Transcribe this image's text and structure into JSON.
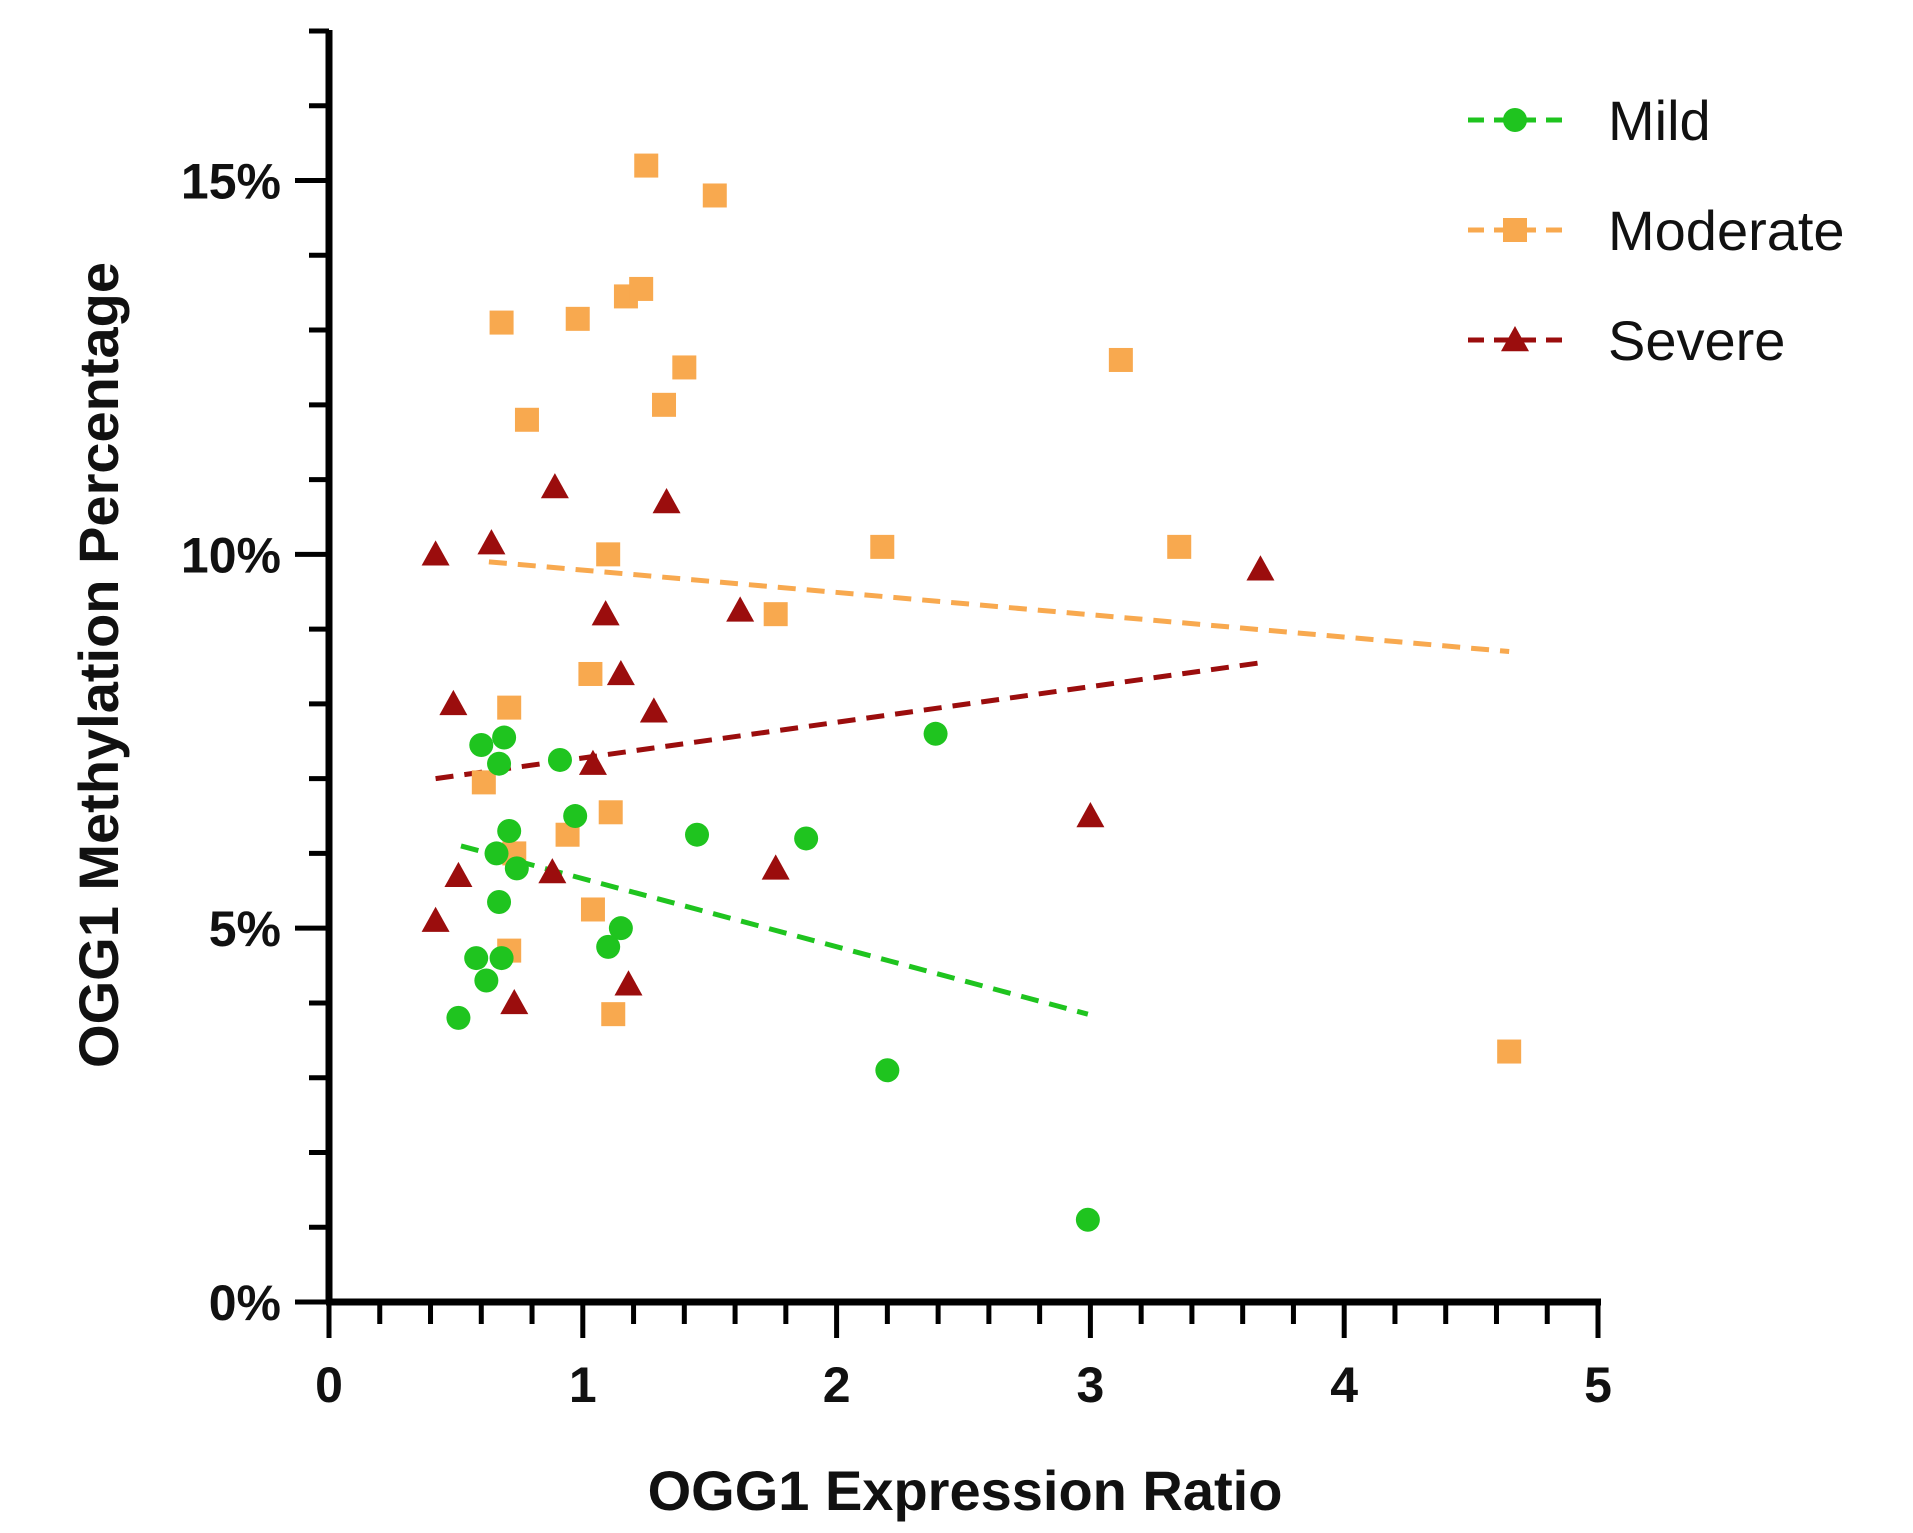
{
  "chart_data": {
    "type": "scatter",
    "xlabel": "OGG1 Expression Ratio",
    "ylabel": "OGG1 Methylation Percentage",
    "xlim": [
      0,
      5
    ],
    "ylim": [
      0,
      17
    ],
    "x_ticks": [
      0,
      1,
      2,
      3,
      4,
      5
    ],
    "x_tick_labels": [
      "0",
      "1",
      "2",
      "3",
      "4",
      "5"
    ],
    "y_ticks": [
      0,
      5,
      10,
      15
    ],
    "y_tick_labels": [
      "0%",
      "5%",
      "10%",
      "15%"
    ],
    "grid": false,
    "legend_position": "top-right",
    "series": [
      {
        "name": "Mild",
        "color": "#1fc41f",
        "marker": "circle",
        "points": [
          [
            0.51,
            3.8
          ],
          [
            0.58,
            4.6
          ],
          [
            0.6,
            7.45
          ],
          [
            0.62,
            4.3
          ],
          [
            0.66,
            6.0
          ],
          [
            0.67,
            7.2
          ],
          [
            0.67,
            5.35
          ],
          [
            0.68,
            4.6
          ],
          [
            0.69,
            7.55
          ],
          [
            0.71,
            6.3
          ],
          [
            0.74,
            5.8
          ],
          [
            0.91,
            7.25
          ],
          [
            0.97,
            6.5
          ],
          [
            1.1,
            4.75
          ],
          [
            1.15,
            5.0
          ],
          [
            1.45,
            6.25
          ],
          [
            1.88,
            6.2
          ],
          [
            2.2,
            3.1
          ],
          [
            2.39,
            7.6
          ],
          [
            2.99,
            1.1
          ]
        ],
        "trend": {
          "x": [
            0.52,
            2.99
          ],
          "y": [
            6.1,
            3.85
          ]
        }
      },
      {
        "name": "Moderate",
        "color": "#f8a94f",
        "marker": "square",
        "points": [
          [
            0.61,
            6.95
          ],
          [
            0.68,
            13.1
          ],
          [
            0.71,
            4.7
          ],
          [
            0.71,
            7.95
          ],
          [
            0.73,
            6.0
          ],
          [
            0.78,
            11.8
          ],
          [
            0.94,
            6.25
          ],
          [
            0.98,
            13.15
          ],
          [
            1.03,
            8.4
          ],
          [
            1.04,
            5.25
          ],
          [
            1.1,
            10.0
          ],
          [
            1.11,
            6.55
          ],
          [
            1.12,
            3.85
          ],
          [
            1.17,
            13.45
          ],
          [
            1.23,
            13.55
          ],
          [
            1.25,
            15.2
          ],
          [
            1.32,
            12.0
          ],
          [
            1.4,
            12.5
          ],
          [
            1.52,
            14.8
          ],
          [
            1.76,
            9.2
          ],
          [
            2.18,
            10.1
          ],
          [
            3.12,
            12.6
          ],
          [
            3.35,
            10.1
          ],
          [
            4.65,
            3.35
          ]
        ],
        "trend": {
          "x": [
            0.63,
            4.65
          ],
          "y": [
            9.9,
            8.7
          ]
        }
      },
      {
        "name": "Severe",
        "color": "#9b0d0d",
        "marker": "triangle",
        "points": [
          [
            0.42,
            10.0
          ],
          [
            0.42,
            5.1
          ],
          [
            0.49,
            8.0
          ],
          [
            0.51,
            5.7
          ],
          [
            0.64,
            10.15
          ],
          [
            0.73,
            4.0
          ],
          [
            0.88,
            5.75
          ],
          [
            0.89,
            10.9
          ],
          [
            1.04,
            7.2
          ],
          [
            1.09,
            9.2
          ],
          [
            1.15,
            8.4
          ],
          [
            1.18,
            4.25
          ],
          [
            1.28,
            7.9
          ],
          [
            1.33,
            10.7
          ],
          [
            1.62,
            9.25
          ],
          [
            1.76,
            5.8
          ],
          [
            3.0,
            6.5
          ],
          [
            3.67,
            9.8
          ]
        ],
        "trend": {
          "x": [
            0.42,
            3.67
          ],
          "y": [
            7.0,
            8.55
          ]
        }
      }
    ]
  }
}
